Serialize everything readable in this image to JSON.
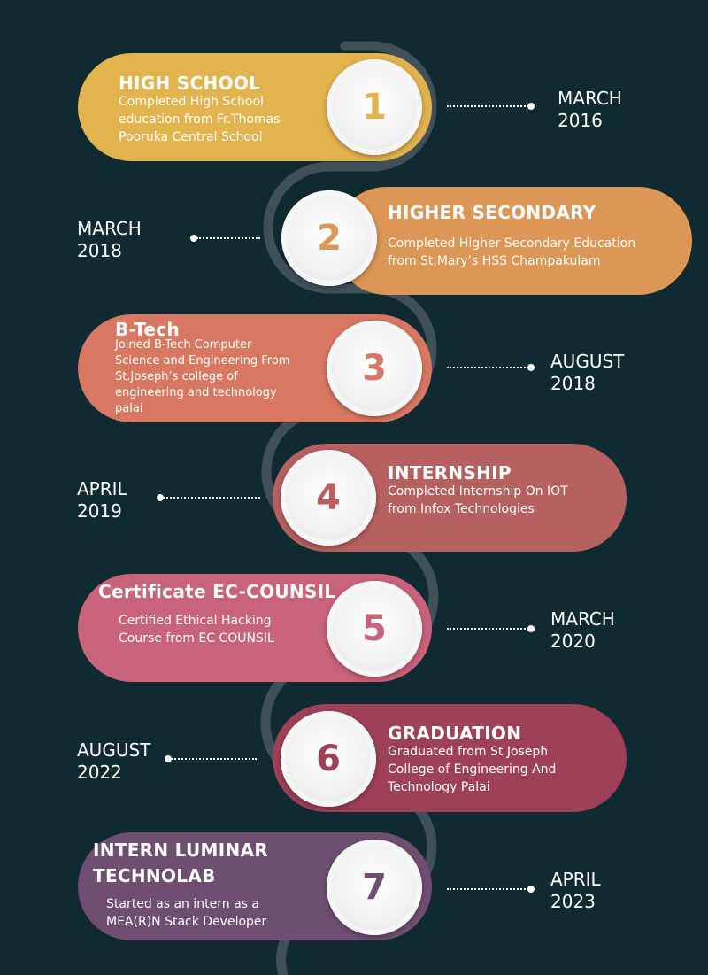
{
  "colors": {
    "background": "#0f2a30",
    "path": "#3f5058",
    "step1": "#e3b34e",
    "step2": "#dc9656",
    "step3": "#d87862",
    "step4": "#b76060",
    "step5": "#c9637a",
    "step6": "#9e4058",
    "step7": "#6f4e72"
  },
  "steps": [
    {
      "number": "1",
      "title": "HIGH SCHOOL",
      "description": "Completed High School\neducation from Fr.Thomas\nPooruka Central School",
      "date_month": "MARCH",
      "date_year": "2016"
    },
    {
      "number": "2",
      "title": "HIGHER SECONDARY",
      "description": "Completed Higher Secondary Education\nfrom St.Mary’s HSS Champakulam",
      "date_month": "MARCH",
      "date_year": "2018"
    },
    {
      "number": "3",
      "title": "B-Tech",
      "description": "Joined B-Tech Computer\nScience and Engineering From\nSt.Joseph’s college of\nengineering and technology\npalai",
      "date_month": "AUGUST",
      "date_year": "2018"
    },
    {
      "number": "4",
      "title": "INTERNSHIP",
      "description": "Completed Internship On IOT\nfrom Infox Technologies",
      "date_month": "APRIL",
      "date_year": "2019"
    },
    {
      "number": "5",
      "title": "Certificate EC-COUNSIL",
      "description": "Certified Ethical Hacking\nCourse from EC COUNSIL",
      "date_month": "MARCH",
      "date_year": "2020"
    },
    {
      "number": "6",
      "title": "GRADUATION",
      "description": "Graduated from St Joseph\nCollege of Engineering And\nTechnology Palai",
      "date_month": "AUGUST",
      "date_year": "2022"
    },
    {
      "number": "7",
      "title": "INTERN LUMINAR\nTECHNOLAB",
      "description": "Started as an intern as  a\nMEA(R)N Stack Developer",
      "date_month": "APRIL",
      "date_year": "2023"
    }
  ]
}
